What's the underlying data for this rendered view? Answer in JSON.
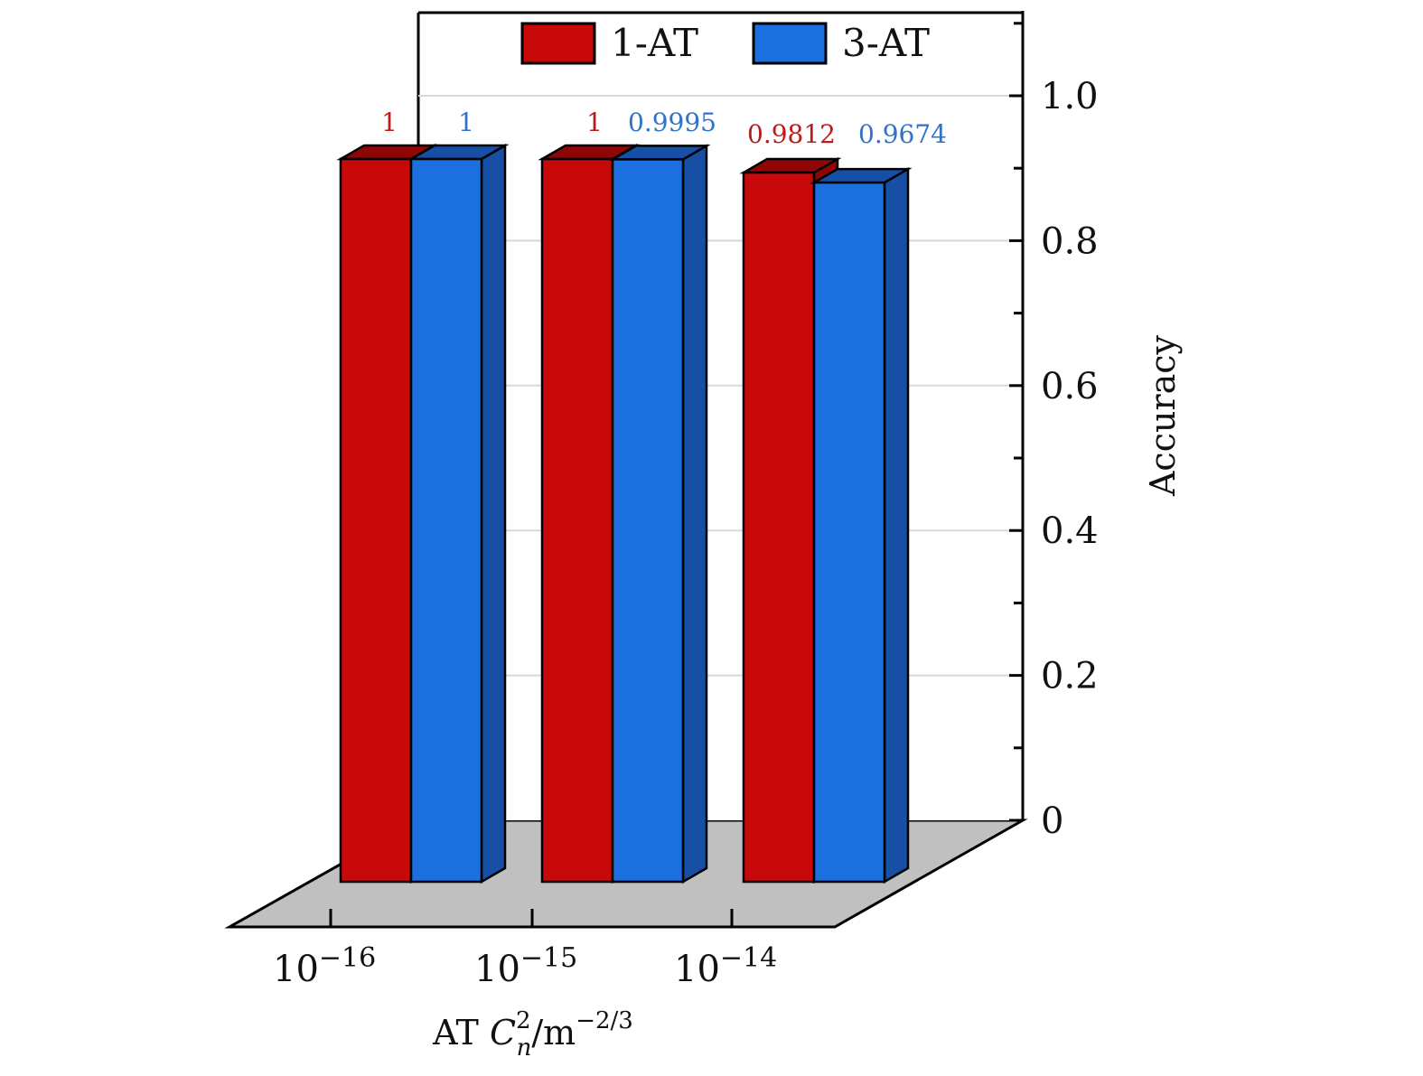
{
  "chart_data": {
    "type": "bar",
    "style": "3d-grouped",
    "categories": [
      "10",
      "10",
      "10"
    ],
    "category_exponents": [
      "−16",
      "−15",
      "−14"
    ],
    "series": [
      {
        "name": "1-AT",
        "values": [
          1,
          1,
          0.9812
        ],
        "labels": [
          "1",
          "1",
          "0.9812"
        ],
        "color": "#c8090a",
        "side_color": "#8f0606",
        "label_color": "#b81c1c"
      },
      {
        "name": "3-AT",
        "values": [
          1,
          0.9995,
          0.9674
        ],
        "labels": [
          "1",
          "0.9995",
          "0.9674"
        ],
        "color": "#1b6fde",
        "side_color": "#174ea6",
        "label_color": "#2f73c9"
      }
    ],
    "ylabel": "Accuracy",
    "xlabel": {
      "prefix": "AT ",
      "var": "C",
      "sup": "2",
      "sub": "n",
      "unit": "/m",
      "unit_exp": "−2/3"
    },
    "ylim": [
      0,
      1.1
    ],
    "y_ticks": [
      "0",
      "0.2",
      "0.4",
      "0.6",
      "0.8",
      "1.0"
    ],
    "y_tick_values": [
      0,
      0.2,
      0.4,
      0.6,
      0.8,
      1.0
    ],
    "grid": true,
    "legend": "top"
  }
}
